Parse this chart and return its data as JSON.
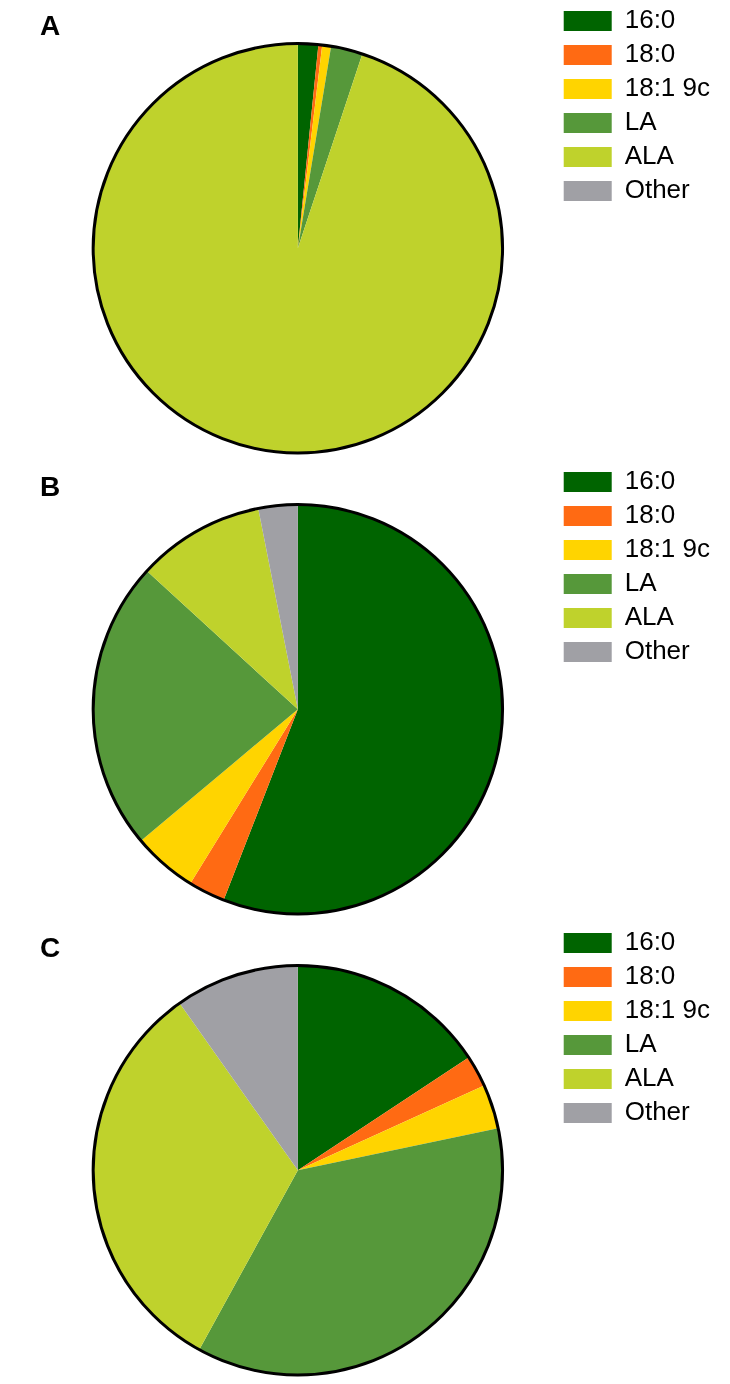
{
  "chart_data": [
    {
      "type": "pie",
      "title": "A",
      "categories": [
        "16:0",
        "18:0",
        "18:1 9c",
        "LA",
        "ALA",
        "Other"
      ],
      "values": [
        1.6,
        0.3,
        0.7,
        2.5,
        94.9,
        0
      ],
      "colors": [
        "#006400",
        "#ff6a13",
        "#ffd400",
        "#56983a",
        "#bfd22c",
        "#a0a0a5"
      ],
      "legend": "right"
    },
    {
      "type": "pie",
      "title": "B",
      "categories": [
        "16:0",
        "18:0",
        "18:1 9c",
        "LA",
        "ALA",
        "Other"
      ],
      "values": [
        55.9,
        2.9,
        5.1,
        22.9,
        10.1,
        3.1
      ],
      "colors": [
        "#006400",
        "#ff6a13",
        "#ffd400",
        "#56983a",
        "#bfd22c",
        "#a0a0a5"
      ],
      "legend": "right"
    },
    {
      "type": "pie",
      "title": "C",
      "categories": [
        "16:0",
        "18:0",
        "18:1 9c",
        "LA",
        "ALA",
        "Other"
      ],
      "values": [
        15.7,
        2.5,
        3.5,
        36.3,
        32.2,
        9.8
      ],
      "colors": [
        "#006400",
        "#ff6a13",
        "#ffd400",
        "#56983a",
        "#bfd22c",
        "#a0a0a5"
      ],
      "legend": "right"
    }
  ]
}
